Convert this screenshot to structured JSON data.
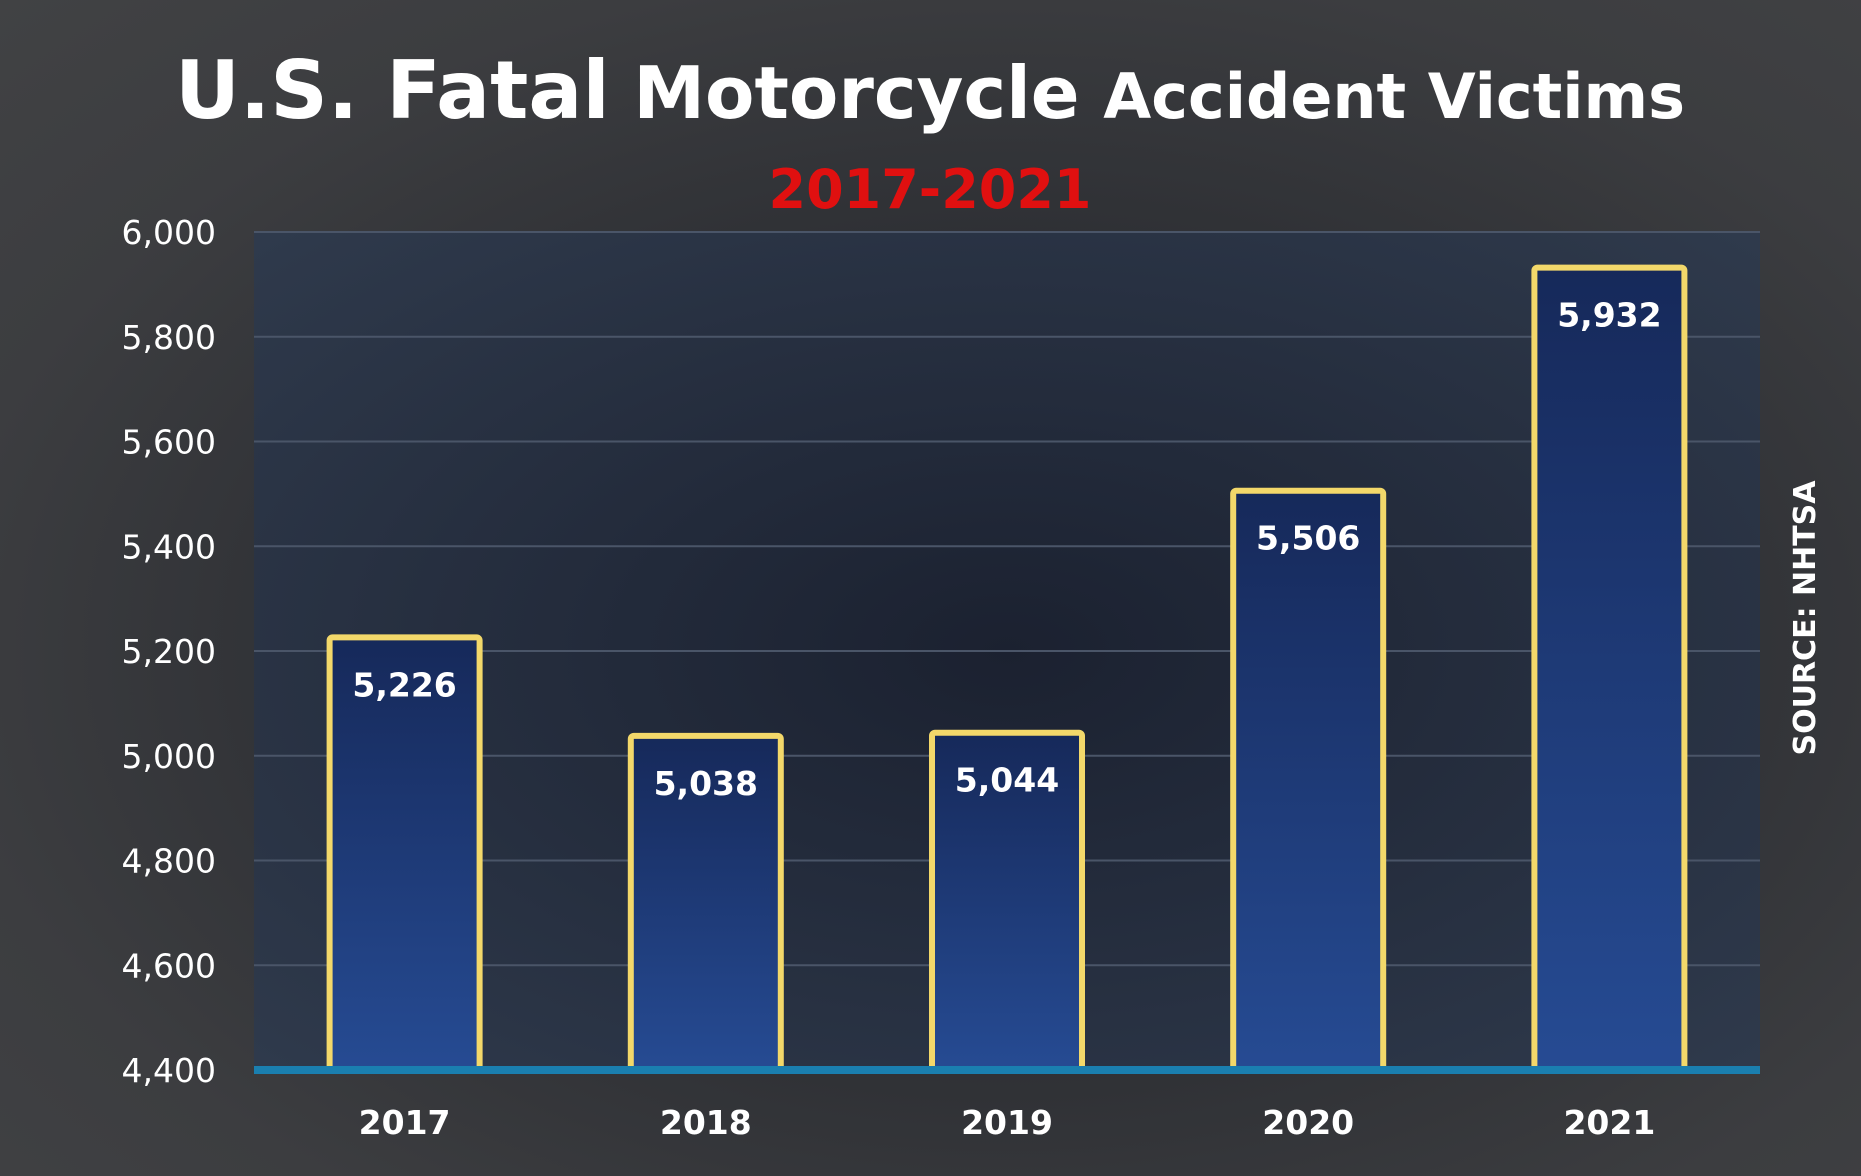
{
  "chart_data": {
    "type": "bar",
    "title": "U.S. Fatal Motorcycle Accident Victims",
    "title_parts": [
      "U.S. Fatal",
      "Motorcycle",
      "Accident Victims"
    ],
    "subtitle": "2017-2021",
    "source": "SOURCE: NHTSA",
    "categories": [
      "2017",
      "2018",
      "2019",
      "2020",
      "2021"
    ],
    "values": [
      5226,
      5038,
      5044,
      5506,
      5932
    ],
    "value_labels": [
      "5,226",
      "5,038",
      "5,044",
      "5,506",
      "5,932"
    ],
    "ylim": [
      4400,
      6000
    ],
    "yticks": [
      4400,
      4600,
      4800,
      5000,
      5200,
      5400,
      5600,
      5800,
      6000
    ],
    "ytick_labels": [
      "4,400",
      "4,600",
      "4,800",
      "5,000",
      "5,200",
      "5,400",
      "5,600",
      "5,800",
      "6,000"
    ],
    "xlabel": "",
    "ylabel": "",
    "grid": true,
    "legend": "none",
    "colors": {
      "bar_top": "#16295a",
      "bar_bottom": "#264b93",
      "bar_border": "#f3d86a",
      "baseline": "#1a7fb0",
      "plot_bg": "#2a3444",
      "grid": "#4a5568",
      "subtitle": "#e01010"
    }
  }
}
